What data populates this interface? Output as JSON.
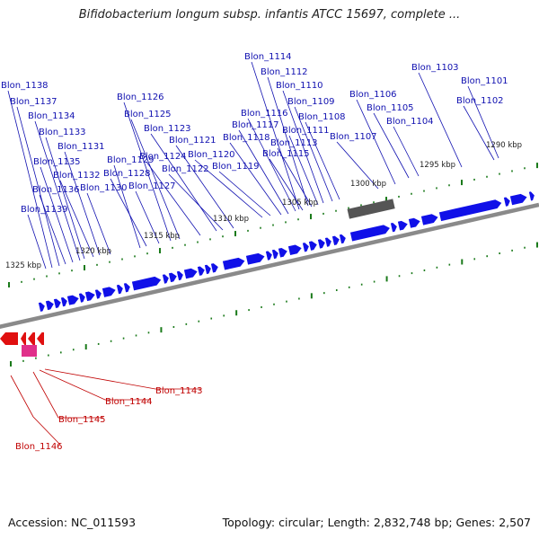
{
  "title": "Bifidobacterium longum subsp. infantis ATCC 15697, complete ...",
  "footer": {
    "accession": "Accession: NC_011593",
    "summary": "Topology: circular; Length: 2,832,748 bp; Genes: 2,507"
  },
  "scale_labels": [
    "1290 kbp",
    "1295 kbp",
    "1300 kbp",
    "1305 kbp",
    "1310 kbp",
    "1315 kbp",
    "1320 kbp",
    "1325 kbp"
  ],
  "genes_forward": [
    "Blon_1101",
    "Blon_1102",
    "Blon_1103",
    "Blon_1104",
    "Blon_1105",
    "Blon_1106",
    "Blon_1107",
    "Blon_1108",
    "Blon_1109",
    "Blon_1110",
    "Blon_1111",
    "Blon_1112",
    "Blon_1113",
    "Blon_1114",
    "Blon_1115",
    "Blon_1116",
    "Blon_1117",
    "Blon_1118",
    "Blon_1119",
    "Blon_1120",
    "Blon_1121",
    "Blon_1122",
    "Blon_1123",
    "Blon_1124",
    "Blon_1125",
    "Blon_1126",
    "Blon_1127",
    "Blon_1128",
    "Blon_1129",
    "Blon_1130",
    "Blon_1131",
    "Blon_1132",
    "Blon_1133",
    "Blon_1134",
    "Blon_1135",
    "Blon_1136",
    "Blon_1137",
    "Blon_1138",
    "Blon_1139"
  ],
  "genes_reverse": [
    "Blon_1143",
    "Blon_1144",
    "Blon_1145",
    "Blon_1146"
  ],
  "colors": {
    "forward_gene": "#1010e8",
    "reverse_gene": "#e01010",
    "pink_feature": "#e0308a",
    "gray_feature": "#555555",
    "backbone": "#888888",
    "tick": "#1a7a1a",
    "forward_label": "#1010b0",
    "reverse_label": "#c00000"
  }
}
